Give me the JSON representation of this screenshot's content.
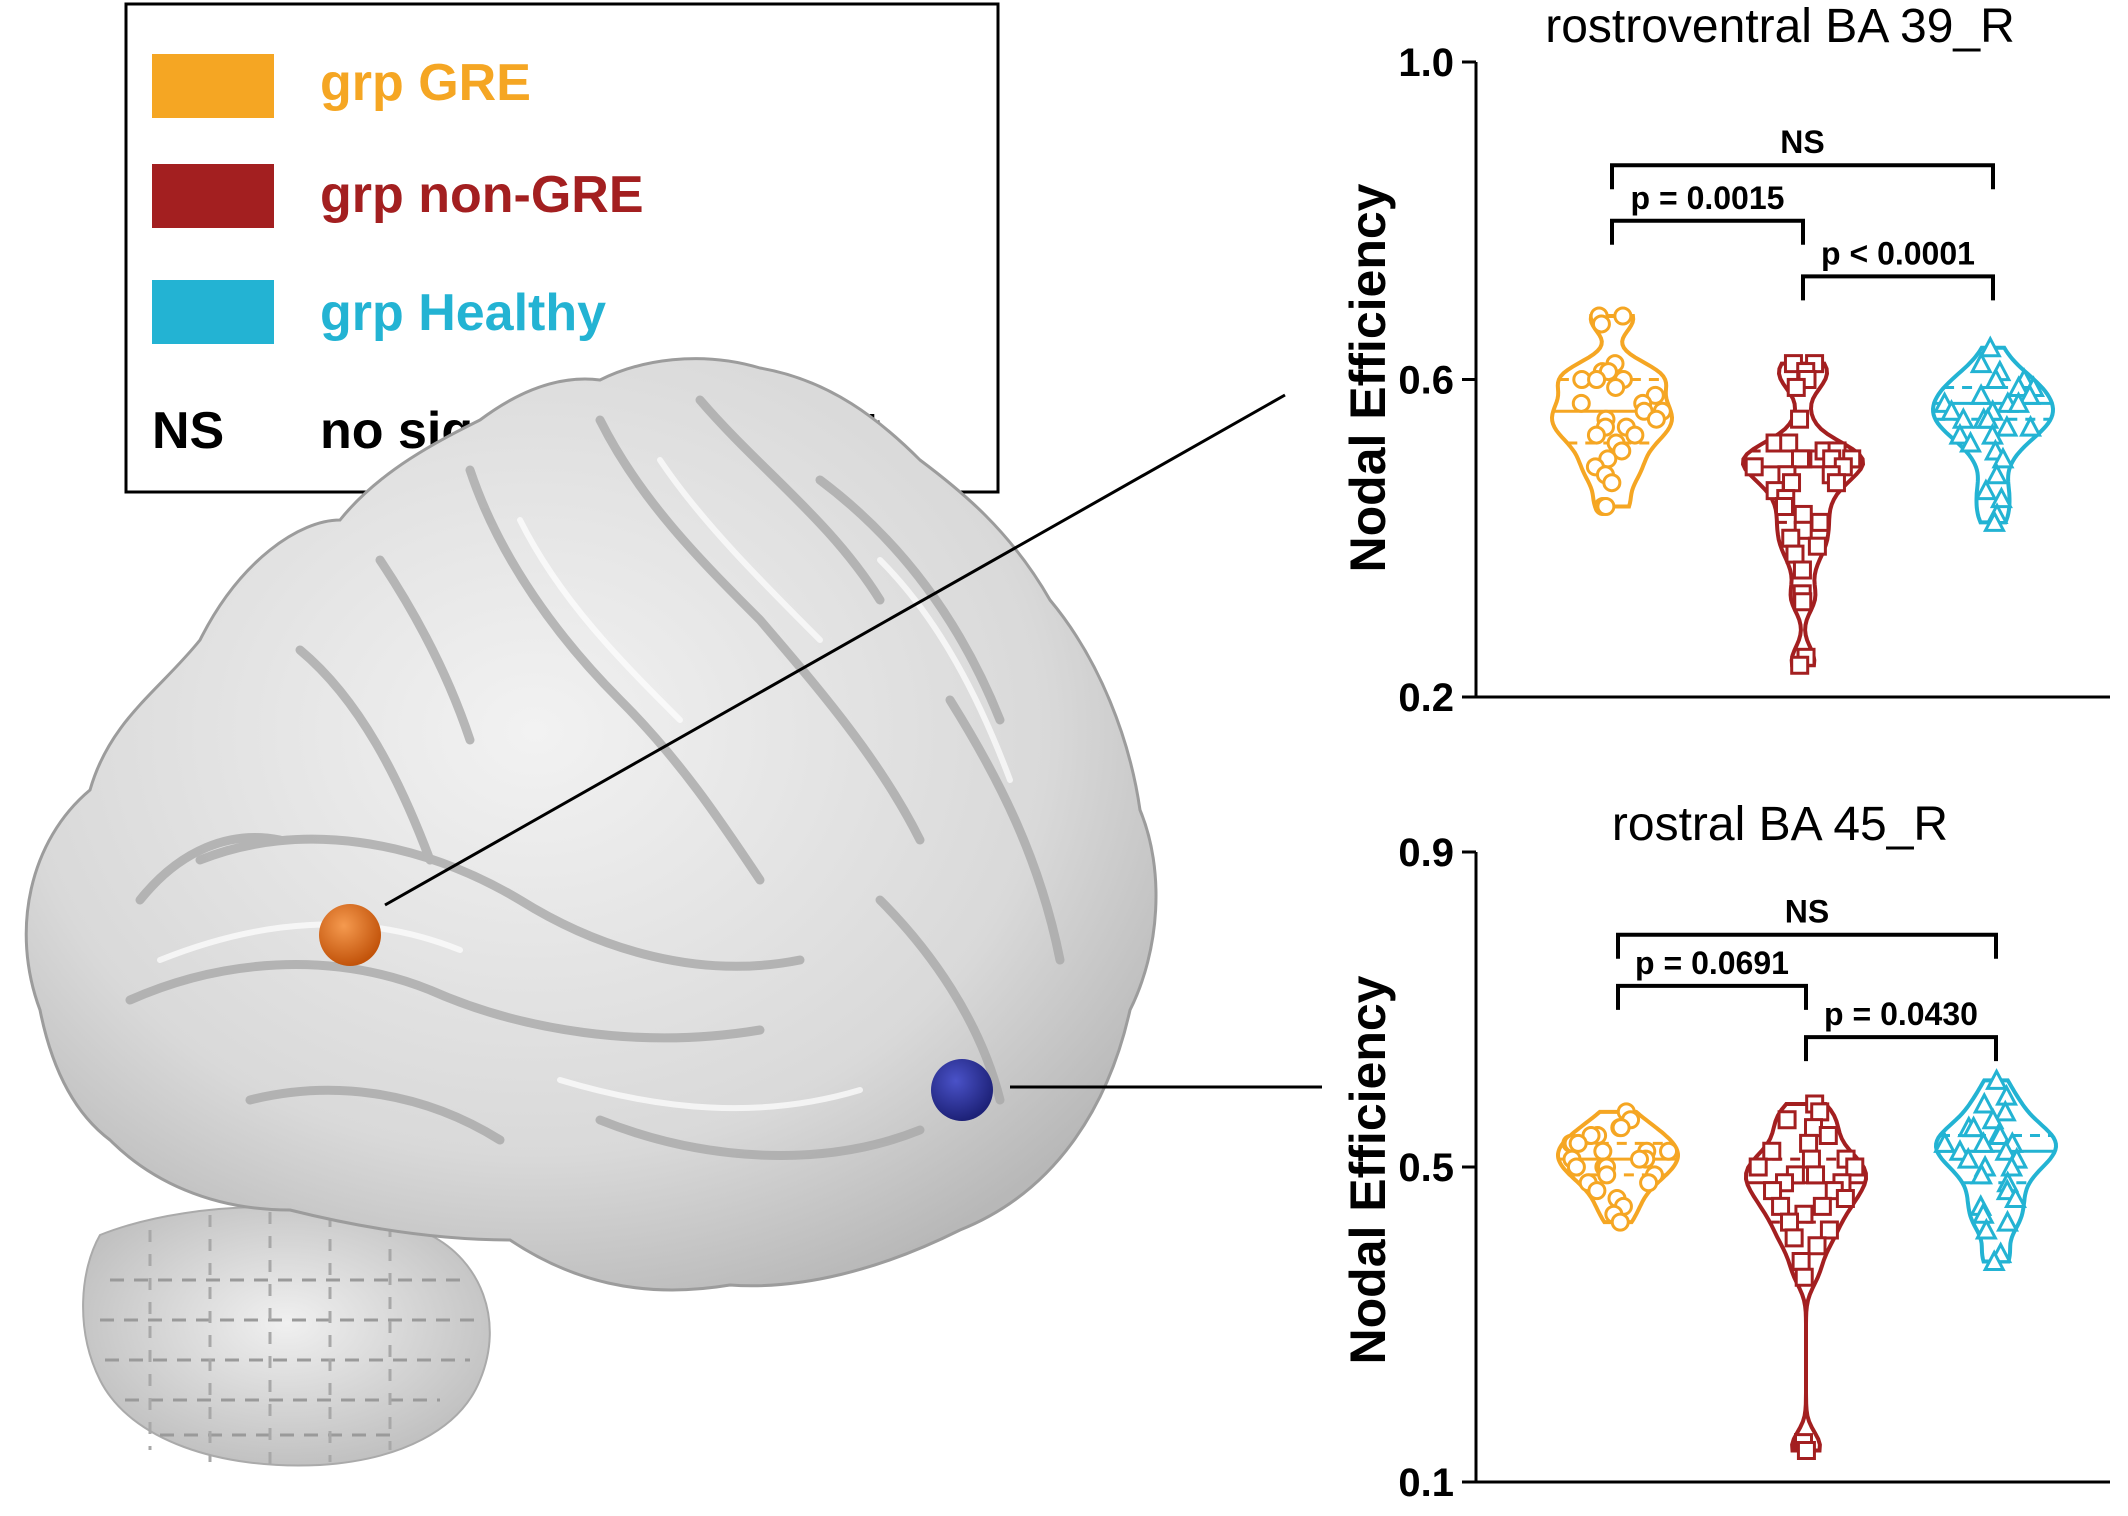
{
  "legend": {
    "items": [
      {
        "label": "grp GRE",
        "color": "#F5A623"
      },
      {
        "label": "grp non-GRE",
        "color": "#A31F20"
      },
      {
        "label": "grp Healthy",
        "color": "#23B3D3"
      }
    ],
    "ns_key": "NS",
    "ns_desc": "no significant different"
  },
  "chart_data": [
    {
      "type": "violin",
      "title": "rostroventral BA 39_R",
      "ylabel": "Nodal Efficiency",
      "ylim": [
        0.2,
        1.0
      ],
      "yticks": [
        "0.2",
        "0.6",
        "1.0"
      ],
      "groups": [
        {
          "name": "grp GRE",
          "color": "#F5A623",
          "marker": "circle",
          "median": 0.56,
          "quartiles": [
            0.52,
            0.6
          ],
          "values": [
            0.68,
            0.68,
            0.67,
            0.62,
            0.61,
            0.61,
            0.6,
            0.6,
            0.6,
            0.59,
            0.58,
            0.57,
            0.57,
            0.56,
            0.56,
            0.55,
            0.55,
            0.54,
            0.54,
            0.53,
            0.53,
            0.52,
            0.51,
            0.5,
            0.49,
            0.48,
            0.47,
            0.44,
            0.44
          ]
        },
        {
          "name": "grp non-GRE",
          "color": "#A31F20",
          "marker": "square",
          "median": 0.49,
          "quartiles": [
            0.42,
            0.51
          ],
          "values": [
            0.62,
            0.62,
            0.61,
            0.6,
            0.59,
            0.55,
            0.52,
            0.52,
            0.51,
            0.51,
            0.5,
            0.5,
            0.5,
            0.5,
            0.49,
            0.49,
            0.48,
            0.48,
            0.47,
            0.47,
            0.46,
            0.45,
            0.44,
            0.43,
            0.42,
            0.41,
            0.4,
            0.39,
            0.38,
            0.36,
            0.33,
            0.32,
            0.25,
            0.24
          ]
        },
        {
          "name": "grp Healthy",
          "color": "#23B3D3",
          "marker": "triangle",
          "median": 0.57,
          "quartiles": [
            0.55,
            0.59
          ],
          "values": [
            0.64,
            0.62,
            0.61,
            0.6,
            0.6,
            0.59,
            0.59,
            0.58,
            0.58,
            0.57,
            0.57,
            0.57,
            0.56,
            0.56,
            0.55,
            0.55,
            0.55,
            0.54,
            0.54,
            0.53,
            0.53,
            0.52,
            0.51,
            0.5,
            0.48,
            0.46,
            0.45,
            0.43,
            0.42
          ]
        }
      ],
      "comparisons": [
        {
          "from": 0,
          "to": 2,
          "label": "NS",
          "y": 0.87
        },
        {
          "from": 0,
          "to": 1,
          "label": "p = 0.0015",
          "y": 0.8
        },
        {
          "from": 1,
          "to": 2,
          "label": "p < 0.0001",
          "y": 0.73
        }
      ]
    },
    {
      "type": "violin",
      "title": "rostral BA 45_R",
      "ylabel": "Nodal Efficiency",
      "ylim": [
        0.1,
        0.9
      ],
      "yticks": [
        "0.1",
        "0.5",
        "0.9"
      ],
      "groups": [
        {
          "name": "grp GRE",
          "color": "#F5A623",
          "marker": "circle",
          "median": 0.51,
          "quartiles": [
            0.49,
            0.53
          ],
          "values": [
            0.57,
            0.56,
            0.55,
            0.55,
            0.54,
            0.54,
            0.53,
            0.53,
            0.53,
            0.52,
            0.52,
            0.52,
            0.51,
            0.51,
            0.51,
            0.5,
            0.5,
            0.5,
            0.49,
            0.49,
            0.48,
            0.48,
            0.47,
            0.46,
            0.45,
            0.44,
            0.43
          ]
        },
        {
          "name": "grp non-GRE",
          "color": "#A31F20",
          "marker": "square",
          "median": 0.48,
          "quartiles": [
            0.43,
            0.51
          ],
          "values": [
            0.58,
            0.57,
            0.56,
            0.55,
            0.54,
            0.53,
            0.52,
            0.51,
            0.51,
            0.5,
            0.5,
            0.49,
            0.49,
            0.48,
            0.48,
            0.47,
            0.47,
            0.46,
            0.45,
            0.45,
            0.44,
            0.43,
            0.42,
            0.41,
            0.4,
            0.38,
            0.36,
            0.15,
            0.14
          ]
        },
        {
          "name": "grp Healthy",
          "color": "#23B3D3",
          "marker": "triangle",
          "median": 0.52,
          "quartiles": [
            0.48,
            0.54
          ],
          "values": [
            0.61,
            0.59,
            0.58,
            0.57,
            0.56,
            0.55,
            0.55,
            0.54,
            0.54,
            0.53,
            0.53,
            0.53,
            0.52,
            0.52,
            0.51,
            0.51,
            0.5,
            0.5,
            0.49,
            0.48,
            0.47,
            0.46,
            0.45,
            0.44,
            0.43,
            0.42,
            0.39,
            0.38
          ]
        }
      ],
      "comparisons": [
        {
          "from": 0,
          "to": 2,
          "label": "NS",
          "y": 0.795
        },
        {
          "from": 0,
          "to": 1,
          "label": "p = 0.0691",
          "y": 0.73
        },
        {
          "from": 1,
          "to": 2,
          "label": "p = 0.0430",
          "y": 0.665
        }
      ]
    }
  ],
  "brain": {
    "markers": [
      {
        "name": "rostroventral BA 39_R",
        "color": "#E26A12"
      },
      {
        "name": "rostral BA 45_R",
        "color": "#2A2F9A"
      }
    ]
  }
}
